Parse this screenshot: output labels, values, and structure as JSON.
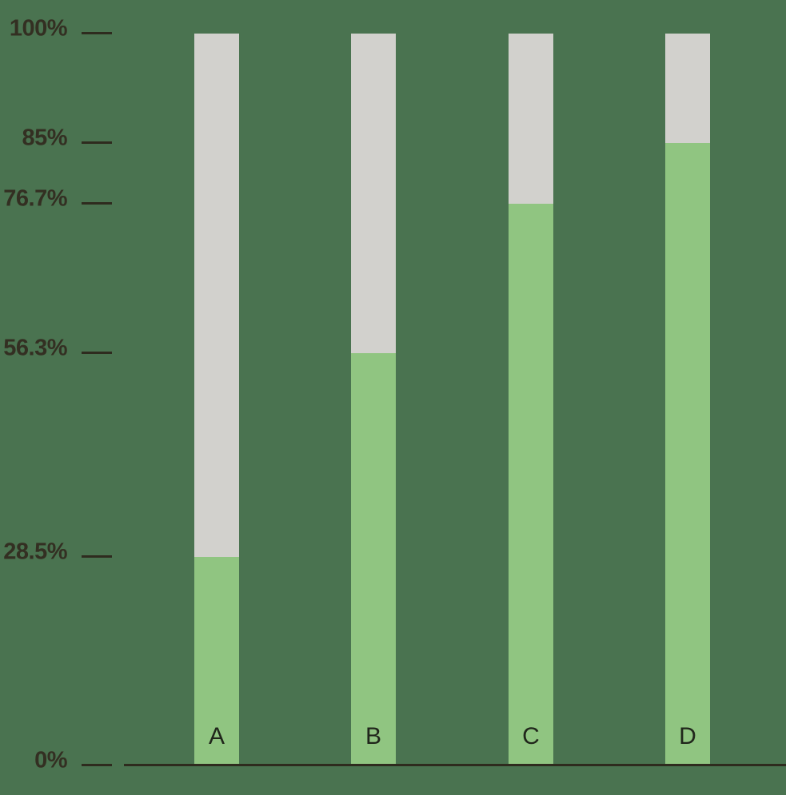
{
  "chart_data": {
    "type": "bar",
    "variant": "stacked-100-percent",
    "orientation": "vertical",
    "title": "",
    "xlabel": "",
    "ylabel": "",
    "grid": false,
    "legend": false,
    "ylim": [
      0,
      100
    ],
    "categories": [
      "A",
      "B",
      "C",
      "D"
    ],
    "series": [
      {
        "name": "filled-portion",
        "color": "#90C581",
        "values": [
          28.5,
          56.3,
          76.7,
          85
        ]
      },
      {
        "name": "remainder-portion",
        "color": "#D2D1CD",
        "values": [
          71.5,
          43.7,
          23.3,
          15
        ]
      }
    ],
    "yticks": [
      {
        "label": "100%",
        "value": 100
      },
      {
        "label": "85%",
        "value": 85
      },
      {
        "label": "76.7%",
        "value": 76.7
      },
      {
        "label": "56.3%",
        "value": 56.3
      },
      {
        "label": "28.5%",
        "value": 28.5
      },
      {
        "label": "0%",
        "value": 0
      }
    ]
  },
  "colors": {
    "background": "#4A7350",
    "bar_fill": "#90C581",
    "bar_remainder": "#D2D1CD",
    "axis_line": "#2E2B1E",
    "tick_text": "#332F22",
    "bar_label_text": "#20261B"
  }
}
